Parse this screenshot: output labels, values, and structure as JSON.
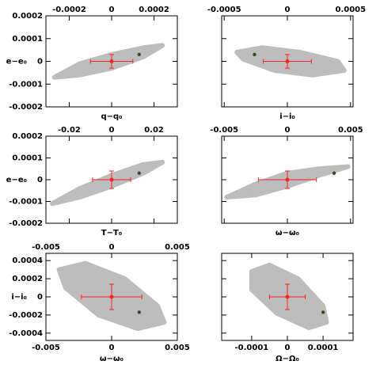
{
  "chart_data": [
    {
      "type": "scatter",
      "xlabel": "q−q₀",
      "ylabel": "e−e₀",
      "xlim": [
        -0.00031,
        0.00031
      ],
      "ylim": [
        -0.0002,
        0.0002
      ],
      "xticks": [
        -0.0002,
        0,
        0.0002
      ],
      "yticks": [
        -0.0002,
        -0.0001,
        0,
        0.0001,
        0.0002
      ],
      "xtick_labels": [
        "top"
      ],
      "ytick_labels": true,
      "cloud": {
        "color": "#bdbdbd",
        "x": [
          -0.00027,
          -0.00015,
          0,
          0.00015,
          0.00024,
          0.00015,
          0,
          -0.00015
        ],
        "y": [
          -7e-05,
          -6e-05,
          -3e-05,
          2e-05,
          7e-05,
          6e-05,
          3e-05,
          -1e-05
        ]
      },
      "best": {
        "color": "#ff2020",
        "x": 0,
        "y": 0,
        "xerr": 0.0001,
        "yerr": 3e-05
      },
      "marker": {
        "color": "#2f4f1f",
        "x": 0.00013,
        "y": 3e-05
      }
    },
    {
      "type": "scatter",
      "xlabel": "i−i₀",
      "xlim": [
        -0.00052,
        0.00052
      ],
      "ylim": [
        -0.0002,
        0.0002
      ],
      "xticks": [
        -0.0005,
        0,
        0.0005
      ],
      "yticks": [
        -0.0002,
        -0.0001,
        0,
        0.0001,
        0.0002
      ],
      "xtick_labels": [
        "top"
      ],
      "ytick_labels": false,
      "cloud": {
        "color": "#bdbdbd",
        "x": [
          -0.0004,
          -0.0002,
          0.0001,
          0.0004,
          0.00045,
          0.0002,
          -0.0001,
          -0.00035
        ],
        "y": [
          4e-05,
          6e-05,
          4e-05,
          0,
          -4e-05,
          -6e-05,
          -4e-05,
          1e-05
        ]
      },
      "best": {
        "color": "#ff2020",
        "x": 0,
        "y": 0,
        "xerr": 0.00019,
        "yerr": 3e-05
      },
      "marker": {
        "color": "#2f4f1f",
        "x": -0.00026,
        "y": 3e-05
      }
    },
    {
      "type": "scatter",
      "xlabel": "T−T₀",
      "ylabel": "e−e₀",
      "xlim": [
        -0.031,
        0.031
      ],
      "ylim": [
        -0.0002,
        0.0002
      ],
      "xticks": [
        -0.02,
        0,
        0.02
      ],
      "yticks": [
        -0.0002,
        -0.0001,
        0,
        0.0001,
        0.0002
      ],
      "xtick_labels": [
        "top"
      ],
      "ytick_labels": true,
      "cloud": {
        "color": "#bdbdbd",
        "x": [
          -0.028,
          -0.015,
          0,
          0.015,
          0.024,
          0.015,
          0,
          -0.015
        ],
        "y": [
          -0.00011,
          -8e-05,
          -3e-05,
          3e-05,
          8e-05,
          7e-05,
          2e-05,
          -4e-05
        ]
      },
      "best": {
        "color": "#ff2020",
        "x": 0,
        "y": 0,
        "xerr": 0.009,
        "yerr": 4e-05
      },
      "marker": {
        "color": "#2f4f1f",
        "x": 0.013,
        "y": 3e-05
      }
    },
    {
      "type": "scatter",
      "xlabel": "ω−ω₀",
      "xlim": [
        -0.0052,
        0.0052
      ],
      "ylim": [
        -0.0002,
        0.0002
      ],
      "xticks": [
        -0.005,
        0,
        0.005
      ],
      "yticks": [
        -0.0002,
        -0.0001,
        0,
        0.0001,
        0.0002
      ],
      "xtick_labels": [
        "top"
      ],
      "ytick_labels": false,
      "cloud": {
        "color": "#bdbdbd",
        "x": [
          -0.0048,
          -0.0025,
          0,
          0.0025,
          0.0048,
          0.0025,
          0,
          -0.0025
        ],
        "y": [
          -8e-05,
          -7e-05,
          -3e-05,
          2e-05,
          6e-05,
          5e-05,
          3e-05,
          -2e-05
        ]
      },
      "best": {
        "color": "#ff2020",
        "x": 0,
        "y": 0,
        "xerr": 0.0023,
        "yerr": 4e-05
      },
      "marker": {
        "color": "#2f4f1f",
        "x": 0.0037,
        "y": 3e-05
      }
    },
    {
      "type": "scatter",
      "xlabel": "ω−ω₀",
      "ylabel": "i−i₀",
      "xlim": [
        -0.005,
        0.005
      ],
      "ylim": [
        -0.00048,
        0.00048
      ],
      "xticks": [
        -0.005,
        0,
        0.005
      ],
      "yticks": [
        -0.0004,
        -0.0002,
        0,
        0.0002,
        0.0004
      ],
      "xtick_labels": [
        "top",
        "bottom"
      ],
      "ytick_labels": true,
      "cloud": {
        "color": "#bdbdbd",
        "x": [
          -0.004,
          -0.002,
          0.001,
          0.0035,
          0.004,
          0.002,
          -0.001,
          -0.0035
        ],
        "y": [
          0.0003,
          0.00037,
          0.0002,
          -0.0001,
          -0.00028,
          -0.00035,
          -0.0002,
          0.0001
        ]
      },
      "best": {
        "color": "#ff2020",
        "x": 0,
        "y": 0,
        "xerr": 0.0023,
        "yerr": 0.00014
      },
      "marker": {
        "color": "#2f4f1f",
        "x": 0.0021,
        "y": -0.00017
      }
    },
    {
      "type": "scatter",
      "xlabel": "Ω−Ω₀",
      "xlim": [
        -0.000184,
        0.000184
      ],
      "ylim": [
        -0.00048,
        0.00048
      ],
      "xticks": [
        -0.0001,
        0,
        0.0001
      ],
      "yticks": [
        -0.0004,
        -0.0002,
        0,
        0.0002,
        0.0004
      ],
      "xtick_labels": [
        "bottom"
      ],
      "ytick_labels": false,
      "cloud": {
        "color": "#bdbdbd",
        "x": [
          -0.0001,
          -5e-05,
          3e-05,
          0.0001,
          0.00011,
          6e-05,
          -3e-05,
          -0.0001
        ],
        "y": [
          0.00028,
          0.00035,
          0.0002,
          -0.0001,
          -0.00028,
          -0.00034,
          -0.00018,
          8e-05
        ]
      },
      "best": {
        "color": "#ff2020",
        "x": 0,
        "y": 0,
        "xerr": 5e-05,
        "yerr": 0.00014
      },
      "marker": {
        "color": "#2f4f1f",
        "x": 0.0001,
        "y": -0.00017
      }
    }
  ]
}
